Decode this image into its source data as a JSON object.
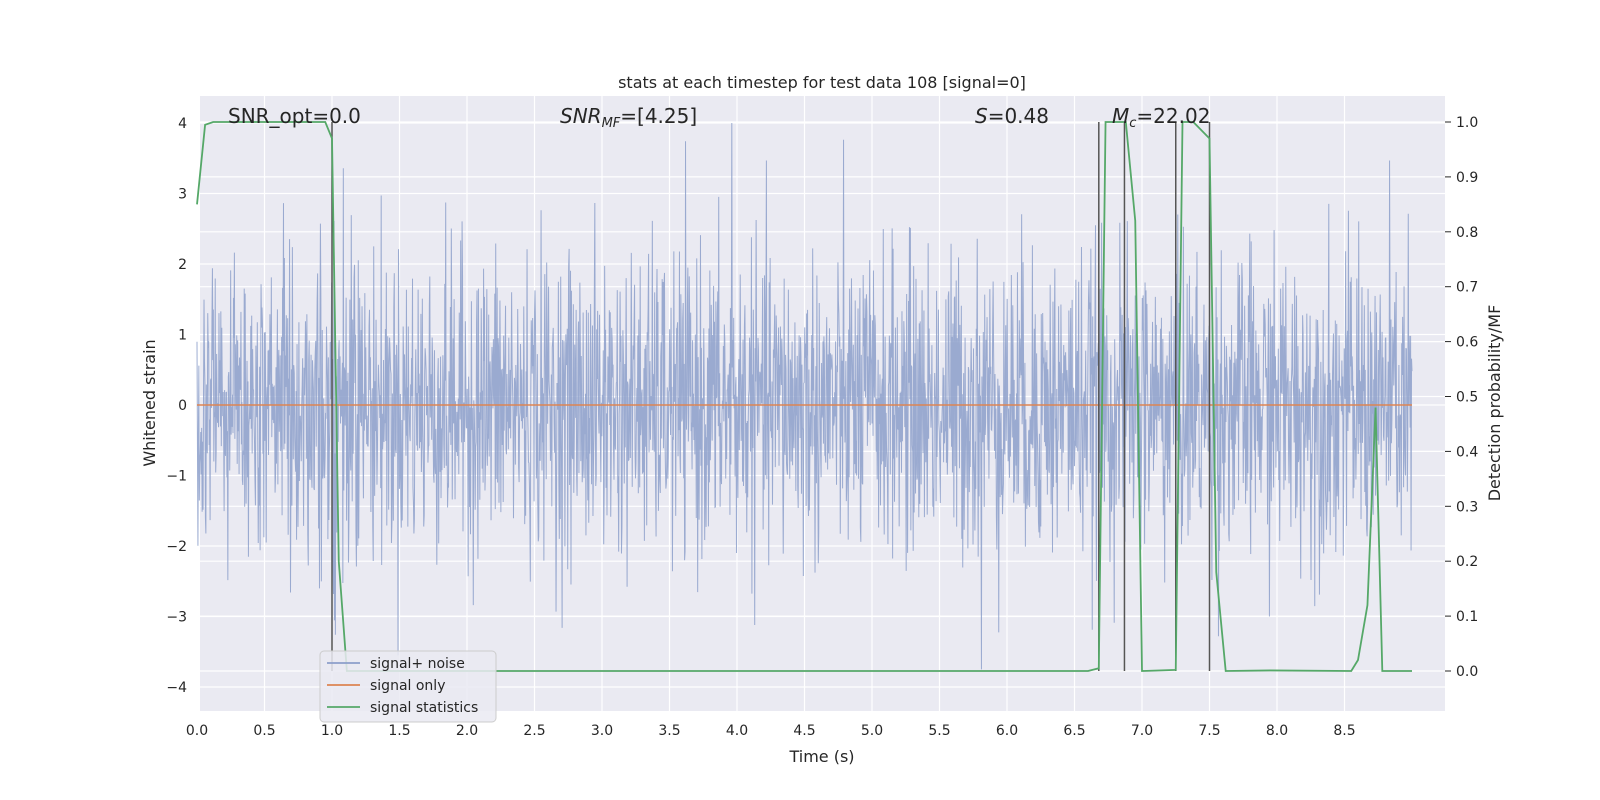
{
  "chart_data": {
    "type": "line",
    "title": "stats at each timestep for test data 108 [signal=0]",
    "xlabel": "Time (s)",
    "ylabel_left": "Whitened strain",
    "ylabel_right": "Detection probability/MF",
    "xlim": [
      0.0,
      9.0
    ],
    "ylim_left": [
      -4.15,
      4.38
    ],
    "ylim_right": [
      -0.045,
      1.045
    ],
    "x_ticks": [
      "0.0",
      "0.5",
      "1.0",
      "1.5",
      "2.0",
      "2.5",
      "3.0",
      "3.5",
      "4.0",
      "4.5",
      "5.0",
      "5.5",
      "6.0",
      "6.5",
      "7.0",
      "7.5",
      "8.0",
      "8.5"
    ],
    "y_left_ticks": [
      "4",
      "3",
      "2",
      "1",
      "0",
      "−1",
      "−2",
      "−3",
      "−4"
    ],
    "y_right_ticks": [
      "1.0",
      "0.9",
      "0.8",
      "0.7",
      "0.6",
      "0.5",
      "0.4",
      "0.3",
      "0.2",
      "0.1",
      "0.0"
    ],
    "grid": true,
    "colors": {
      "background": "#eaeaf2",
      "grid": "#ffffff",
      "noise": "#8c9fca",
      "signal_only": "#dd8452",
      "statistics": "#55a868",
      "vline": "#555555"
    },
    "annotations": [
      {
        "id": "snr-opt",
        "label": "SNR_opt=0.0"
      },
      {
        "id": "snr-mf",
        "label": "SNR",
        "sub": "MF",
        "rest": "=[4.25]"
      },
      {
        "id": "s-value",
        "label": "S",
        "rest": "=0.48"
      },
      {
        "id": "mc-value",
        "label": "M",
        "sub": "c",
        "rest": "=22.02"
      }
    ],
    "series": [
      {
        "name": "signal+ noise",
        "axis": "left",
        "description": "whitened strain noise, roughly Gaussian with unit variance, peaks near ±4",
        "band_core": [
          -0.65,
          0.9
        ],
        "band_typical": [
          -1.45,
          1.65
        ],
        "extremes": [
          {
            "x": 3.96,
            "y": 4.0
          },
          {
            "x": 5.81,
            "y": -3.75
          }
        ]
      },
      {
        "name": "signal only",
        "axis": "left",
        "x": [
          0.0,
          9.0
        ],
        "y": [
          0.0,
          0.0
        ]
      },
      {
        "name": "signal statistics",
        "axis": "right",
        "x": [
          0.0,
          0.06,
          0.12,
          0.2,
          0.95,
          1.0,
          1.05,
          1.11,
          6.6,
          6.68,
          6.73,
          6.78,
          6.88,
          6.95,
          7.0,
          7.25,
          7.3,
          7.38,
          7.5,
          7.55,
          7.62,
          7.95,
          8.55,
          8.6,
          8.67,
          8.73,
          8.78,
          9.0
        ],
        "y": [
          0.85,
          0.995,
          1.0,
          1.0,
          1.0,
          0.97,
          0.2,
          0.0,
          0.0,
          0.005,
          1.0,
          1.0,
          1.0,
          0.82,
          0.0,
          0.002,
          1.0,
          1.0,
          0.97,
          0.18,
          0.0,
          0.001,
          0.0,
          0.02,
          0.12,
          0.48,
          0.0,
          0.0
        ]
      }
    ],
    "vlines": [
      1.0,
      6.68,
      6.87,
      7.25,
      7.5
    ],
    "legend": {
      "position": "lower-left",
      "entries": [
        "signal+ noise",
        "signal only",
        "signal statistics"
      ]
    }
  }
}
